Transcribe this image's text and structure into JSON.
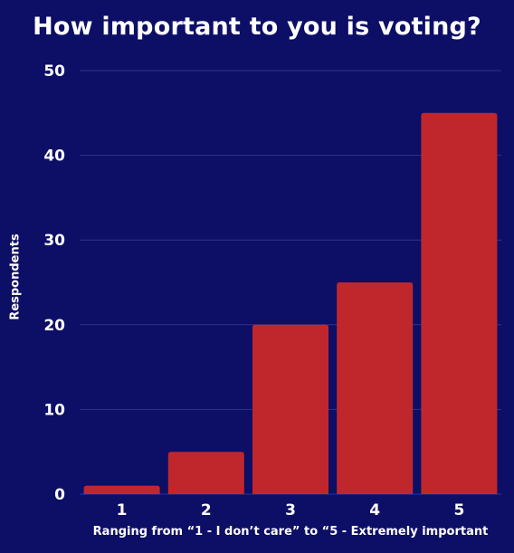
{
  "chart_data": {
    "type": "bar",
    "title": "How important to you is voting?",
    "xlabel": "Ranging from “1 - I don’t care” to “5 - Extremely important",
    "ylabel": "Respondents",
    "categories": [
      "1",
      "2",
      "3",
      "4",
      "5"
    ],
    "values": [
      1,
      5,
      20,
      25,
      45
    ],
    "ylim": [
      0,
      50
    ],
    "yticks": [
      0,
      10,
      20,
      30,
      40,
      50
    ],
    "grid": true,
    "colors": {
      "background": "#0d0e66",
      "bar": "#c0272d",
      "grid": "#2e3488",
      "text": "#ffffff"
    }
  }
}
